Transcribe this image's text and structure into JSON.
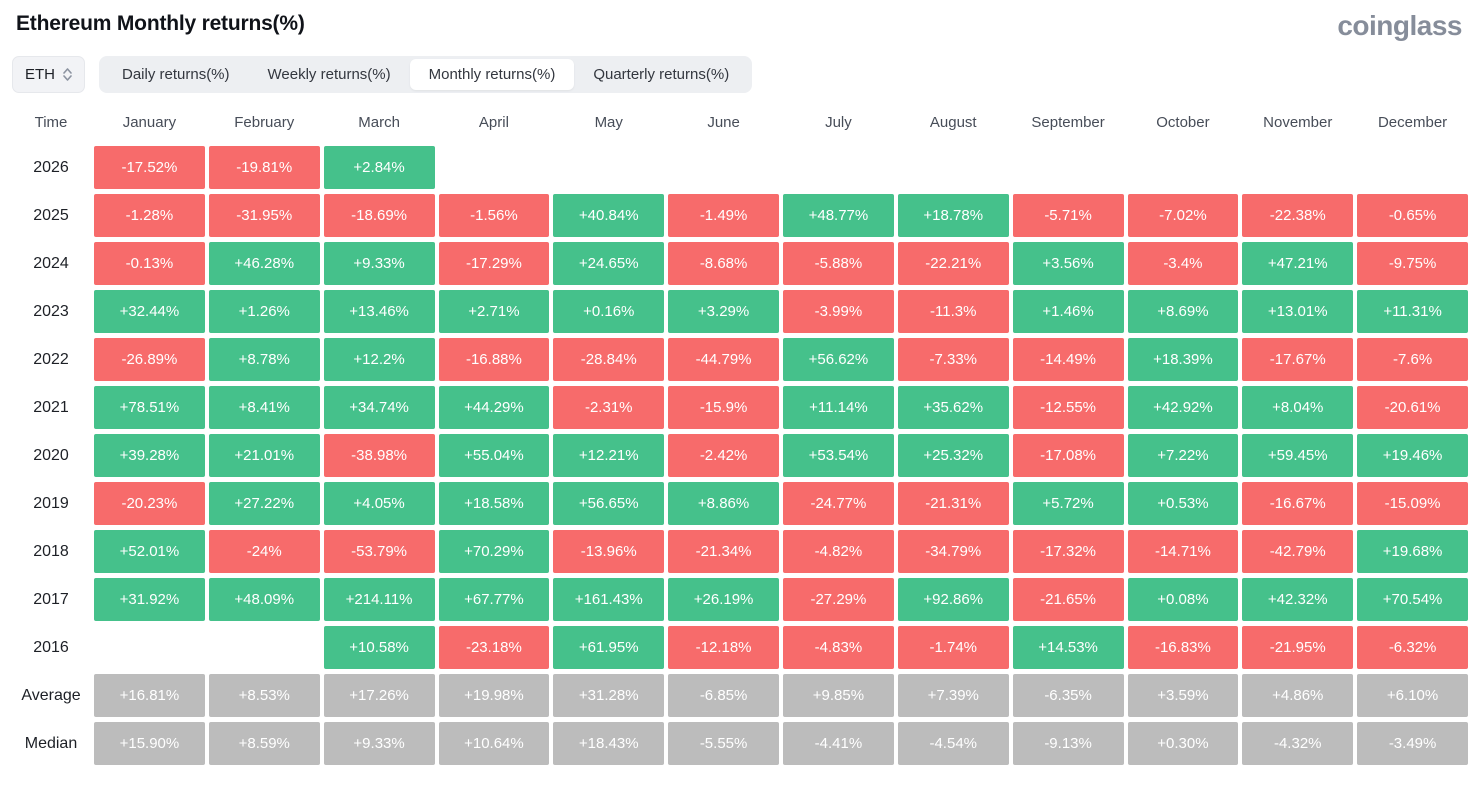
{
  "header": {
    "title": "Ethereum Monthly returns(%)",
    "logo_text": "coinglass"
  },
  "controls": {
    "symbol": "ETH",
    "tabs": [
      {
        "label": "Daily returns(%)",
        "active": false
      },
      {
        "label": "Weekly returns(%)",
        "active": false
      },
      {
        "label": "Monthly returns(%)",
        "active": true
      },
      {
        "label": "Quarterly returns(%)",
        "active": false
      }
    ]
  },
  "colors": {
    "positive": "#45c18b",
    "negative": "#f76b6b",
    "neutral": "#bcbcbc"
  },
  "table": {
    "time_label": "Time",
    "months": [
      "January",
      "February",
      "March",
      "April",
      "May",
      "June",
      "July",
      "August",
      "September",
      "October",
      "November",
      "December"
    ],
    "rows": [
      {
        "label": "2026",
        "summary": false,
        "values": [
          "-17.52%",
          "-19.81%",
          "+2.84%",
          "",
          "",
          "",
          "",
          "",
          "",
          "",
          "",
          ""
        ]
      },
      {
        "label": "2025",
        "summary": false,
        "values": [
          "-1.28%",
          "-31.95%",
          "-18.69%",
          "-1.56%",
          "+40.84%",
          "-1.49%",
          "+48.77%",
          "+18.78%",
          "-5.71%",
          "-7.02%",
          "-22.38%",
          "-0.65%"
        ]
      },
      {
        "label": "2024",
        "summary": false,
        "values": [
          "-0.13%",
          "+46.28%",
          "+9.33%",
          "-17.29%",
          "+24.65%",
          "-8.68%",
          "-5.88%",
          "-22.21%",
          "+3.56%",
          "-3.4%",
          "+47.21%",
          "-9.75%"
        ]
      },
      {
        "label": "2023",
        "summary": false,
        "values": [
          "+32.44%",
          "+1.26%",
          "+13.46%",
          "+2.71%",
          "+0.16%",
          "+3.29%",
          "-3.99%",
          "-11.3%",
          "+1.46%",
          "+8.69%",
          "+13.01%",
          "+11.31%"
        ]
      },
      {
        "label": "2022",
        "summary": false,
        "values": [
          "-26.89%",
          "+8.78%",
          "+12.2%",
          "-16.88%",
          "-28.84%",
          "-44.79%",
          "+56.62%",
          "-7.33%",
          "-14.49%",
          "+18.39%",
          "-17.67%",
          "-7.6%"
        ]
      },
      {
        "label": "2021",
        "summary": false,
        "values": [
          "+78.51%",
          "+8.41%",
          "+34.74%",
          "+44.29%",
          "-2.31%",
          "-15.9%",
          "+11.14%",
          "+35.62%",
          "-12.55%",
          "+42.92%",
          "+8.04%",
          "-20.61%"
        ]
      },
      {
        "label": "2020",
        "summary": false,
        "values": [
          "+39.28%",
          "+21.01%",
          "-38.98%",
          "+55.04%",
          "+12.21%",
          "-2.42%",
          "+53.54%",
          "+25.32%",
          "-17.08%",
          "+7.22%",
          "+59.45%",
          "+19.46%"
        ]
      },
      {
        "label": "2019",
        "summary": false,
        "values": [
          "-20.23%",
          "+27.22%",
          "+4.05%",
          "+18.58%",
          "+56.65%",
          "+8.86%",
          "-24.77%",
          "-21.31%",
          "+5.72%",
          "+0.53%",
          "-16.67%",
          "-15.09%"
        ]
      },
      {
        "label": "2018",
        "summary": false,
        "values": [
          "+52.01%",
          "-24%",
          "-53.79%",
          "+70.29%",
          "-13.96%",
          "-21.34%",
          "-4.82%",
          "-34.79%",
          "-17.32%",
          "-14.71%",
          "-42.79%",
          "+19.68%"
        ]
      },
      {
        "label": "2017",
        "summary": false,
        "values": [
          "+31.92%",
          "+48.09%",
          "+214.11%",
          "+67.77%",
          "+161.43%",
          "+26.19%",
          "-27.29%",
          "+92.86%",
          "-21.65%",
          "+0.08%",
          "+42.32%",
          "+70.54%"
        ]
      },
      {
        "label": "2016",
        "summary": false,
        "values": [
          "",
          "",
          "+10.58%",
          "-23.18%",
          "+61.95%",
          "-12.18%",
          "-4.83%",
          "-1.74%",
          "+14.53%",
          "-16.83%",
          "-21.95%",
          "-6.32%"
        ]
      },
      {
        "label": "Average",
        "summary": true,
        "values": [
          "+16.81%",
          "+8.53%",
          "+17.26%",
          "+19.98%",
          "+31.28%",
          "-6.85%",
          "+9.85%",
          "+7.39%",
          "-6.35%",
          "+3.59%",
          "+4.86%",
          "+6.10%"
        ]
      },
      {
        "label": "Median",
        "summary": true,
        "values": [
          "+15.90%",
          "+8.59%",
          "+9.33%",
          "+10.64%",
          "+18.43%",
          "-5.55%",
          "-4.41%",
          "-4.54%",
          "-9.13%",
          "+0.30%",
          "-4.32%",
          "-3.49%"
        ]
      }
    ]
  }
}
